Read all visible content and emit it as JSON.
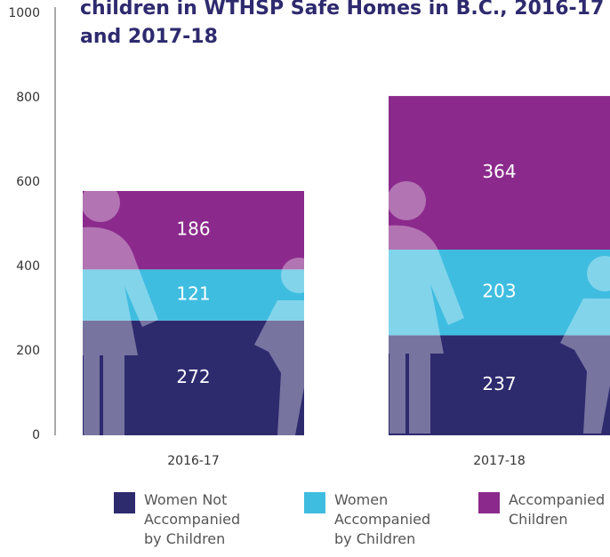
{
  "chart_data": {
    "type": "stacked_bar",
    "title": "children in WTHSP Safe Homes in B.C., 2016-17 and 2017-18",
    "categories": [
      "2016-17",
      "2017-18"
    ],
    "series": [
      {
        "name": "Women Not Accompanied by Children",
        "color": "#2e2a6e",
        "values": [
          272,
          237
        ]
      },
      {
        "name": "Women Accompanied by Children",
        "color": "#3fbde0",
        "values": [
          121,
          203
        ]
      },
      {
        "name": "Accompanied Children",
        "color": "#8b2a8c",
        "values": [
          186,
          364
        ]
      }
    ],
    "ylim": [
      0,
      1000
    ],
    "yticks": [
      0,
      200,
      400,
      600,
      800,
      1000
    ],
    "grid": false,
    "legend": "bottom"
  }
}
